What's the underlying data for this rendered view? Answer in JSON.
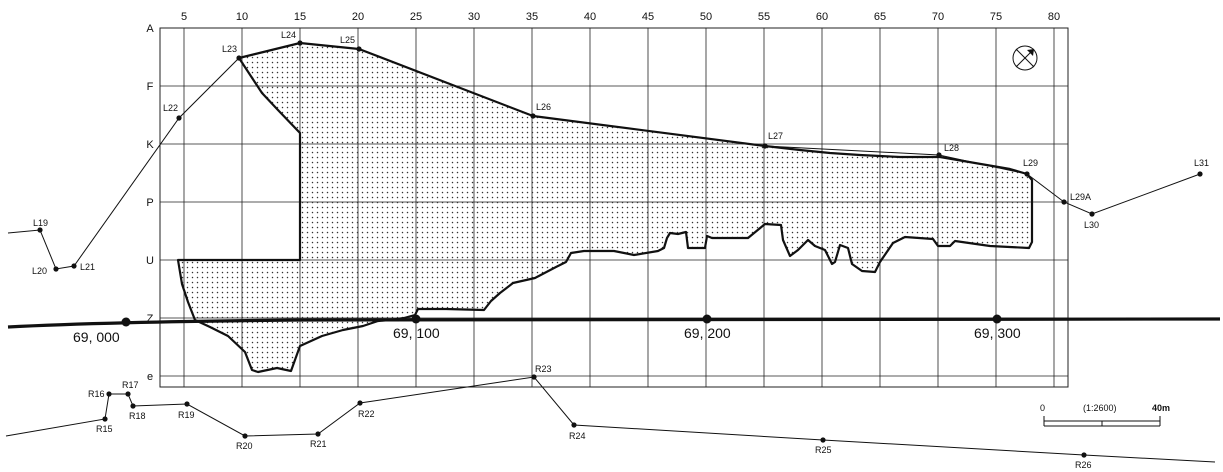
{
  "grid": {
    "columns": [
      "5",
      "10",
      "15",
      "20",
      "25",
      "30",
      "35",
      "40",
      "45",
      "50",
      "55",
      "60",
      "65",
      "70",
      "75",
      "80"
    ],
    "rows": [
      "A",
      "F",
      "K",
      "P",
      "U",
      "Z",
      "e"
    ]
  },
  "chainage": [
    "69, 000",
    "69, 100",
    "69, 200",
    "69, 300"
  ],
  "left_line_points": [
    "L19",
    "L20",
    "L21",
    "L22",
    "L23",
    "L24",
    "L25",
    "L26",
    "L27",
    "L28",
    "L29",
    "L29A",
    "L30",
    "L31"
  ],
  "right_line_points": [
    "R15",
    "R16",
    "R17",
    "R18",
    "R19",
    "R20",
    "R21",
    "R22",
    "R23",
    "R24",
    "R25",
    "R26"
  ],
  "scale": {
    "ratio": "(1:2600)",
    "start": "0",
    "end": "40m"
  },
  "north_symbol": "north-arrow",
  "colors": {
    "ink": "#111111",
    "background": "#ffffff"
  }
}
